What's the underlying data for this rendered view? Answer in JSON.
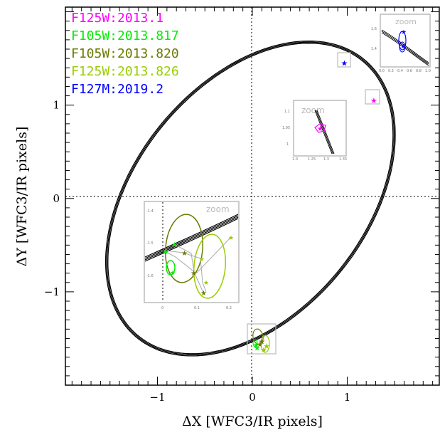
{
  "chart_data": {
    "type": "scatter",
    "title": "",
    "xlabel": "ΔX [WFC3/IR pixels]",
    "ylabel": "ΔY [WFC3/IR pixels]",
    "xlim": [
      -1.97,
      1.97
    ],
    "ylim": [
      -2.0,
      2.05
    ],
    "x_ticks": [
      -1,
      0,
      1
    ],
    "y_ticks": [
      -1,
      0,
      1
    ],
    "zero_lines": true,
    "legend_placement": "top-left",
    "orbit": {
      "center": [
        -0.02,
        0.0
      ],
      "semi_major": 1.9,
      "semi_minor": 1.22,
      "angle_deg": 52
    },
    "series": [
      {
        "name": "F125W:2013.1",
        "color": "#ff00ff",
        "points": [
          [
            1.28,
            1.05
          ]
        ]
      },
      {
        "name": "F105W:2013.817",
        "color": "#00ee00",
        "points": [
          [
            0.04,
            -1.57
          ],
          [
            0.05,
            -1.6
          ]
        ]
      },
      {
        "name": "F105W:2013.820",
        "color": "#6b7a00",
        "points": [
          [
            0.08,
            -1.56
          ],
          [
            0.1,
            -1.53
          ]
        ]
      },
      {
        "name": "F125W:2013.826",
        "color": "#9acd00",
        "points": [
          [
            0.12,
            -1.62
          ],
          [
            0.15,
            -1.58
          ]
        ]
      },
      {
        "name": "F127M:2019.2",
        "color": "#0000ff",
        "points": [
          [
            0.97,
            1.45
          ]
        ]
      }
    ],
    "insets": [
      {
        "label": "zoom",
        "x_ticks": [
          "0.0",
          "0.2",
          "0.4",
          "0.6",
          "0.8",
          "1.0"
        ],
        "y_ticks": [
          "1.6",
          "1.4"
        ],
        "target": "F127M:2019.2"
      },
      {
        "label": "zoom",
        "x_ticks": [
          "1.0",
          "1.25",
          "1.3",
          "1.35"
        ],
        "y_ticks": [
          "1.1",
          "1.05",
          "1"
        ],
        "target": "F125W:2013.1"
      },
      {
        "label": "zoom",
        "x_ticks": [
          "0",
          "0.1",
          "0.2"
        ],
        "y_ticks": [
          "-1.4",
          "-1.5",
          "-1.6"
        ],
        "target": "F105W/F125W 2013.8"
      }
    ]
  }
}
